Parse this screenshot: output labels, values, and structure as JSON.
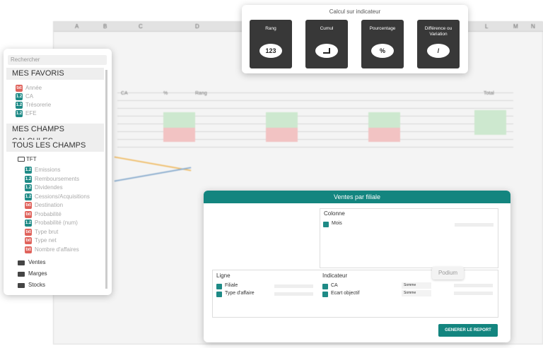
{
  "spreadsheet": {
    "columns": [
      "A",
      "B",
      "C",
      "D",
      "L",
      "M",
      "N"
    ],
    "headers": [
      "CA",
      "%",
      "Rang",
      "Total"
    ]
  },
  "calc_panel": {
    "title": "Calcul sur indicateur",
    "buttons": [
      {
        "label": "Rang",
        "icon": "123"
      },
      {
        "label": "Cumul"
      },
      {
        "label": "Pourcentage",
        "icon": "%"
      },
      {
        "label": "Différence ou Variation",
        "icon": "/"
      }
    ]
  },
  "sidebar": {
    "search": "Rechercher",
    "favorites": {
      "title": "MES FAVORIS",
      "items": [
        {
          "type": "txt",
          "label": "Année"
        },
        {
          "type": "1.2",
          "label": "CA"
        },
        {
          "type": "1.2",
          "label": "Trésorerie"
        },
        {
          "type": "1.2",
          "label": "EFE"
        }
      ]
    },
    "calculated": "MES CHAMPS CALCULES",
    "all_fields": "TOUS LES CHAMPS",
    "folder": {
      "label": "TFT",
      "items": [
        {
          "type": "1.2",
          "label": "Emissions"
        },
        {
          "type": "1.2",
          "label": "Remboursements"
        },
        {
          "type": "1.2",
          "label": "Dividendes"
        },
        {
          "type": "1.2",
          "label": "Cessions/Acquisitions"
        },
        {
          "type": "txt",
          "label": "Destination"
        },
        {
          "type": "txt",
          "label": "Probabilité"
        },
        {
          "type": "1.2",
          "label": "Probabilité (num)"
        },
        {
          "type": "txt",
          "label": "Type brut"
        },
        {
          "type": "txt",
          "label": "Type net"
        },
        {
          "type": "txt",
          "label": "Nombre d'affaires"
        }
      ]
    },
    "folders": [
      "Ventes",
      "Marges",
      "Stocks"
    ]
  },
  "report": {
    "title": "Ventes par filiale",
    "column": {
      "title": "Colonne",
      "items": [
        "Mois"
      ]
    },
    "row": {
      "title": "Ligne",
      "items": [
        "Filiale",
        "Type d'affaire"
      ]
    },
    "indicator": {
      "title": "Indicateur",
      "items": [
        {
          "label": "CA",
          "aggregation": "Somme"
        },
        {
          "label": "Ecart objectif",
          "aggregation": "Somme"
        }
      ]
    },
    "tooltip": "Podium",
    "button": "GENERER LE REPORT"
  }
}
